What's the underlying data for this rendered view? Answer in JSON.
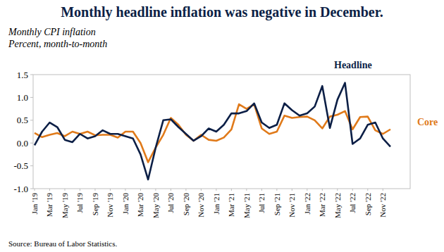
{
  "chart_data": {
    "type": "line",
    "title": "Monthly headline inflation was negative in December.",
    "subtitle": "Monthly CPI inflation",
    "ylabel": "Percent, month-to-month",
    "source": "Source: Bureau of Labor Statistics.",
    "categories": [
      "Jan '19",
      null,
      "Mar '19",
      null,
      "May '19",
      null,
      "Jul '19",
      null,
      "Sep '19",
      null,
      "Nov '19",
      null,
      "Jan '20",
      null,
      "Mar '20",
      null,
      "May '20",
      null,
      "Jul '20",
      null,
      "Sep '20",
      null,
      "Nov '20",
      null,
      "Jan '21",
      null,
      "Mar '21",
      null,
      "May '21",
      null,
      "Jul '21",
      null,
      "Sep '21",
      null,
      "Nov '21",
      null,
      "Jan '22",
      null,
      "Mar '22",
      null,
      "May '22",
      null,
      "Jul '22",
      null,
      "Sep '22",
      null,
      "Nov '22",
      null
    ],
    "series": [
      {
        "name": "Headline",
        "color": "#0c1f46",
        "values": [
          -0.05,
          0.25,
          0.45,
          0.35,
          0.07,
          0.02,
          0.2,
          0.1,
          0.15,
          0.28,
          0.2,
          0.2,
          0.15,
          0.1,
          -0.25,
          -0.8,
          -0.1,
          0.5,
          0.52,
          0.35,
          0.2,
          0.05,
          0.15,
          0.32,
          0.25,
          0.4,
          0.65,
          0.65,
          0.7,
          0.87,
          0.45,
          0.33,
          0.4,
          0.87,
          0.72,
          0.6,
          0.65,
          0.8,
          1.25,
          0.33,
          0.95,
          1.32,
          -0.02,
          0.1,
          0.4,
          0.45,
          0.1,
          -0.08
        ]
      },
      {
        "name": "Core",
        "color": "#e07a1a",
        "values": [
          0.22,
          0.13,
          0.18,
          0.22,
          0.15,
          0.25,
          0.2,
          0.25,
          0.17,
          0.18,
          0.18,
          0.12,
          0.25,
          0.25,
          0.0,
          -0.42,
          -0.1,
          0.18,
          0.55,
          0.4,
          0.18,
          0.05,
          0.18,
          0.07,
          0.05,
          0.12,
          0.3,
          0.85,
          0.75,
          0.85,
          0.32,
          0.2,
          0.25,
          0.6,
          0.55,
          0.57,
          0.58,
          0.5,
          0.32,
          0.58,
          0.62,
          0.7,
          0.3,
          0.57,
          0.58,
          0.28,
          0.2,
          0.3
        ]
      }
    ],
    "ylim": [
      -1,
      1.5
    ],
    "yticks": [
      {
        "value": -1,
        "label": "-1.0"
      },
      -0.5,
      {
        "value": 0,
        "label": "0.0"
      },
      0.5,
      {
        "value": 1,
        "label": "1.0"
      },
      1.5
    ],
    "grid": false
  }
}
